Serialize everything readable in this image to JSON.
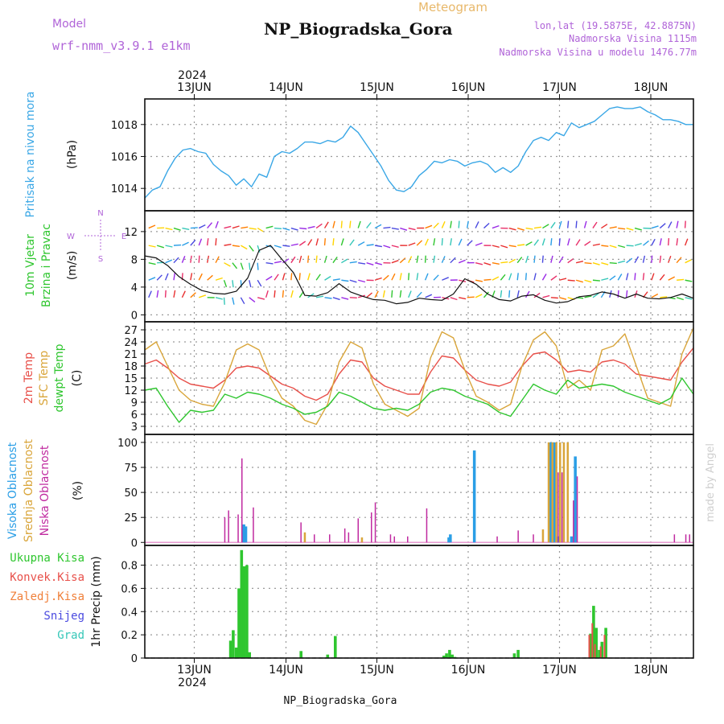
{
  "header": {
    "model_label": "Model",
    "model_name": "wrf-nmm_v3.9.1 e1km",
    "title": "NP_Biogradska_Gora",
    "product": "Meteogram",
    "coords": "lon,lat (19.5875E, 42.8875N)",
    "altitude": "Nadmorska Visina 1115m",
    "model_altitude": "Nadmorska Visina u modelu 1476.77m",
    "year": "2024",
    "footer_title": "NP_Biogradska_Gora",
    "watermark": "made by Angel"
  },
  "colors": {
    "pressure": "#3aa7e6",
    "temp2m": "#e8504a",
    "sfc": "#d9a53a",
    "dewpt": "#2fc62f",
    "high_cloud": "#2a9ee6",
    "mid_cloud": "#d9a53a",
    "low_cloud": "#c02aa0",
    "precip_total": "#2fc62f",
    "precip_conv": "#e8504a",
    "precip_frozen": "#f0803a",
    "snow": "#4b4be0",
    "graupel": "#36c7b8",
    "model_label": "#b064d8",
    "product_label": "#e8b86a"
  },
  "chart_data": [
    {
      "type": "line",
      "panel": "pressure",
      "ylabel_lines": [
        "Pritisak na nivou mora"
      ],
      "unit": "(hPa)",
      "x_ticks": [
        "13JUN",
        "14JUN",
        "15JUN",
        "16JUN",
        "17JUN",
        "18JUN"
      ],
      "yticks": [
        1014,
        1016,
        1018
      ],
      "ylim": [
        1012.6,
        1019.6
      ],
      "grid": true,
      "x_hours": [
        0,
        2,
        4,
        6,
        8,
        10,
        12,
        14,
        16,
        18,
        20,
        22,
        24,
        26,
        28,
        30,
        32,
        34,
        36,
        38,
        40,
        42,
        44,
        46,
        48,
        50,
        52,
        54,
        56,
        58,
        60,
        62,
        64,
        66,
        68,
        70,
        72,
        74,
        76,
        78,
        80,
        82,
        84,
        86,
        88,
        90,
        92,
        94,
        96,
        98,
        100,
        102,
        104,
        106,
        108,
        110,
        112,
        114,
        116,
        118,
        120,
        122,
        124,
        126,
        128,
        130,
        132,
        134,
        136,
        138,
        140,
        142,
        144
      ],
      "series": [
        {
          "name": "",
          "values": [
            1013.4,
            1013.9,
            1014.1,
            1015.1,
            1015.9,
            1016.4,
            1016.5,
            1016.3,
            1016.2,
            1015.5,
            1015.1,
            1014.8,
            1014.2,
            1014.6,
            1014.1,
            1014.9,
            1014.7,
            1016.0,
            1016.3,
            1016.2,
            1016.5,
            1016.9,
            1016.9,
            1016.8,
            1017.0,
            1016.9,
            1017.2,
            1017.9,
            1017.5,
            1016.8,
            1016.1,
            1015.4,
            1014.5,
            1013.9,
            1013.8,
            1014.1,
            1014.8,
            1015.2,
            1015.7,
            1015.6,
            1015.8,
            1015.7,
            1015.4,
            1015.6,
            1015.7,
            1015.5,
            1015.0,
            1015.3,
            1015.0,
            1015.4,
            1016.3,
            1017.0,
            1017.2,
            1017.0,
            1017.5,
            1017.3,
            1018.1,
            1017.8,
            1018.0,
            1018.2,
            1018.6,
            1019.0,
            1019.1,
            1019.0,
            1019.0,
            1019.1,
            1018.8,
            1018.6,
            1018.3,
            1018.3,
            1018.2,
            1018.0,
            1018.0
          ]
        }
      ]
    },
    {
      "type": "line",
      "panel": "wind",
      "ylabel_lines": [
        "10m Vjetar",
        "Brzina i Pravac"
      ],
      "unit": "(m/s)",
      "compass": {
        "n": "N",
        "s": "S",
        "e": "E",
        "w": "W"
      },
      "yticks": [
        0,
        4,
        8,
        12
      ],
      "ylim": [
        -1,
        15
      ],
      "grid": true,
      "x_hours": [
        0,
        3,
        6,
        9,
        12,
        15,
        18,
        21,
        24,
        27,
        30,
        33,
        36,
        39,
        42,
        45,
        48,
        51,
        54,
        57,
        60,
        63,
        66,
        69,
        72,
        75,
        78,
        81,
        84,
        87,
        90,
        93,
        96,
        99,
        102,
        105,
        108,
        111,
        114,
        117,
        120,
        123,
        126,
        129,
        132,
        135,
        138,
        141,
        144
      ],
      "series": [
        {
          "name": "",
          "values": [
            8.5,
            8.2,
            7.1,
            5.5,
            4.4,
            3.5,
            3.1,
            3.0,
            3.4,
            5.3,
            9.3,
            10.0,
            8.0,
            6.1,
            2.8,
            2.7,
            3.2,
            4.5,
            3.3,
            2.7,
            2.2,
            2.1,
            1.6,
            1.8,
            2.4,
            2.2,
            2.1,
            3.0,
            5.2,
            4.4,
            3.0,
            2.2,
            2.0,
            2.7,
            2.9,
            2.1,
            1.7,
            1.9,
            2.6,
            2.8,
            3.3,
            3.0,
            2.4,
            3.0,
            2.4,
            2.3,
            2.5,
            3.0,
            2.4
          ]
        }
      ]
    },
    {
      "type": "line",
      "panel": "temperature",
      "ylabel_lines": [
        "2m Temp",
        "SFC Temp",
        "dewpt Temp"
      ],
      "unit": "(C)",
      "yticks": [
        3,
        6,
        9,
        12,
        15,
        18,
        21,
        24,
        27
      ],
      "ylim": [
        1,
        29
      ],
      "grid": true,
      "x_hours": [
        0,
        3,
        6,
        9,
        12,
        15,
        18,
        21,
        24,
        27,
        30,
        33,
        36,
        39,
        42,
        45,
        48,
        51,
        54,
        57,
        60,
        63,
        66,
        69,
        72,
        75,
        78,
        81,
        84,
        87,
        90,
        93,
        96,
        99,
        102,
        105,
        108,
        111,
        114,
        117,
        120,
        123,
        126,
        129,
        132,
        135,
        138,
        141,
        144
      ],
      "series": [
        {
          "name": "2m Temp",
          "values": [
            18.5,
            19.5,
            17.5,
            15.0,
            13.5,
            13.0,
            12.5,
            14.5,
            17.5,
            18.0,
            17.5,
            15.5,
            13.5,
            12.5,
            10.5,
            9.5,
            11.0,
            16.0,
            19.5,
            19.0,
            15.0,
            13.0,
            12.0,
            11.0,
            11.0,
            16.5,
            20.5,
            20.0,
            17.0,
            14.5,
            13.5,
            13.0,
            14.0,
            18.0,
            21.0,
            21.5,
            19.5,
            16.5,
            17.0,
            16.5,
            19.0,
            19.5,
            18.5,
            16.0,
            15.5,
            15.0,
            14.5,
            19.0,
            22.5
          ]
        },
        {
          "name": "SFC Temp",
          "values": [
            22.0,
            24.0,
            18.0,
            12.0,
            9.5,
            8.5,
            8.0,
            14.0,
            22.0,
            23.5,
            22.0,
            15.0,
            10.0,
            8.0,
            4.5,
            3.5,
            8.5,
            19.0,
            24.0,
            22.5,
            13.5,
            8.5,
            7.0,
            5.5,
            7.5,
            20.0,
            26.5,
            25.0,
            17.0,
            10.5,
            9.0,
            7.0,
            8.5,
            18.0,
            24.5,
            26.5,
            23.0,
            12.5,
            14.5,
            12.0,
            22.0,
            23.0,
            26.0,
            18.0,
            10.0,
            9.0,
            8.0,
            21.0,
            27.5
          ]
        },
        {
          "name": "dewpt Temp",
          "values": [
            12.0,
            12.5,
            8.0,
            4.0,
            7.0,
            6.5,
            7.0,
            11.0,
            10.0,
            11.5,
            11.0,
            10.0,
            8.5,
            7.5,
            6.0,
            6.5,
            8.0,
            11.5,
            10.5,
            9.0,
            7.5,
            7.0,
            7.5,
            7.0,
            8.5,
            11.5,
            12.5,
            12.0,
            10.5,
            9.5,
            8.5,
            6.5,
            5.5,
            9.5,
            13.5,
            12.0,
            11.0,
            14.5,
            12.5,
            13.0,
            13.5,
            13.0,
            11.5,
            10.5,
            9.5,
            8.5,
            10.0,
            15.0,
            11.0
          ]
        }
      ]
    },
    {
      "type": "bar",
      "panel": "cloud",
      "ylabel_lines": [
        "Visoka Oblacnost",
        "Srednja Oblacnost",
        "Niska Oblacnost"
      ],
      "unit": "(%)",
      "yticks": [
        0,
        25,
        50,
        75,
        100
      ],
      "ylim": [
        -3,
        108
      ],
      "grid": true,
      "series": [
        {
          "name": "Visoka Oblacnost",
          "x_hours": [
            26.0,
            26.5,
            79.8,
            80.2,
            86.5,
            106.5,
            107.0,
            107.5,
            108.5,
            112.0,
            113.0
          ],
          "values": [
            18,
            16,
            5,
            8,
            92,
            100,
            100,
            100,
            6,
            6,
            86
          ]
        },
        {
          "name": "Srednja Oblacnost",
          "x_hours": [
            42.0,
            57.0,
            104.5,
            106.0,
            107.0,
            108.0,
            109.0,
            110.0,
            111.0
          ],
          "values": [
            10,
            5,
            13,
            100,
            100,
            100,
            100,
            100,
            100
          ]
        },
        {
          "name": "Niska Oblacnost",
          "x_hours": [
            21.0,
            22.0,
            24.5,
            25.5,
            28.5,
            41.0,
            44.5,
            48.5,
            52.5,
            53.5,
            56.0,
            59.5,
            60.5,
            64.5,
            65.5,
            69.0,
            74.0,
            92.5,
            98.0,
            102.0,
            108.5,
            109.5,
            112.5,
            113.5,
            139.0,
            142.0,
            143.0
          ],
          "values": [
            25,
            32,
            28,
            84,
            35,
            20,
            8,
            8,
            14,
            10,
            24,
            30,
            40,
            8,
            6,
            6,
            34,
            6,
            12,
            8,
            70,
            70,
            42,
            66,
            8,
            8,
            8
          ]
        }
      ]
    },
    {
      "type": "bar",
      "panel": "precip",
      "legend": [
        "Ukupna Kisa",
        "Konvek.Kisa",
        "Zaledj.Kisa",
        "Snijeg",
        "Grad"
      ],
      "ylabel_lines": [
        "1hr Precip (mm)"
      ],
      "yticks": [
        0,
        0.2,
        0.4,
        0.6,
        0.8
      ],
      "ylim": [
        0,
        0.97
      ],
      "grid": true,
      "series": [
        {
          "name": "Ukupna Kisa",
          "x_hours": [
            22.5,
            23.2,
            24.0,
            24.7,
            25.4,
            26.1,
            26.8,
            27.5,
            41.0,
            48.0,
            50.0,
            78.5,
            79.2,
            80.0,
            80.7,
            81.4,
            97.0,
            98.0,
            117.0,
            117.8,
            118.5,
            119.3,
            120.0,
            121.0
          ],
          "values": [
            0.15,
            0.24,
            0.09,
            0.6,
            0.93,
            0.79,
            0.8,
            0.05,
            0.06,
            0.03,
            0.19,
            0.02,
            0.04,
            0.07,
            0.03,
            0.01,
            0.04,
            0.07,
            0.21,
            0.45,
            0.26,
            0.07,
            0.14,
            0.26
          ]
        },
        {
          "name": "Konvek.Kisa",
          "x_hours": [
            117.0,
            117.8,
            118.5,
            120.0,
            121.0
          ],
          "values": [
            0.2,
            0.3,
            0.12,
            0.1,
            0.2
          ]
        }
      ]
    }
  ],
  "bottom_axis": {
    "x_ticks": [
      "13JUN",
      "14JUN",
      "15JUN",
      "16JUN",
      "17JUN",
      "18JUN"
    ],
    "year": "2024"
  }
}
